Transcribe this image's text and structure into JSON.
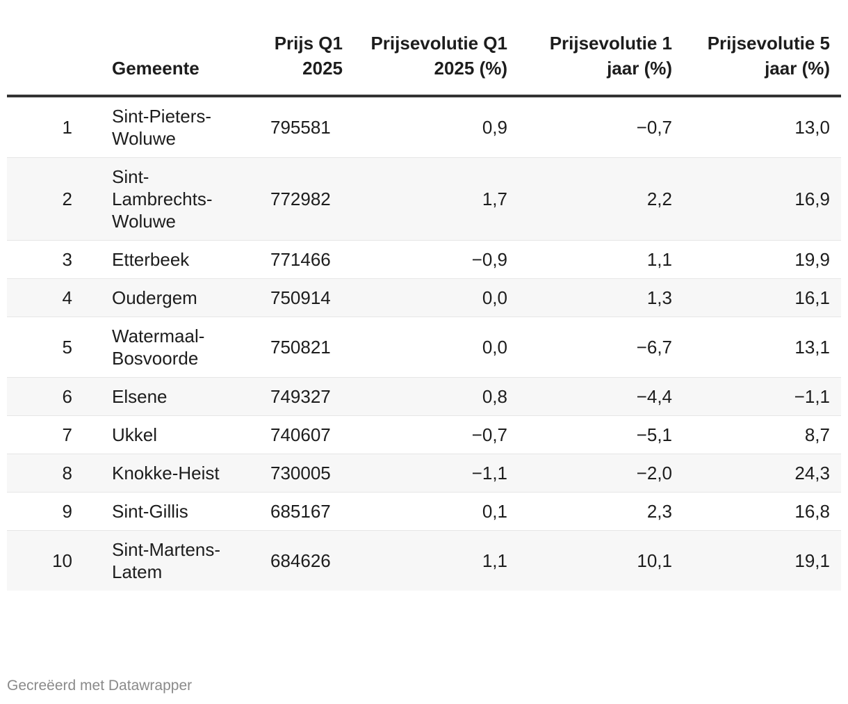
{
  "chart_data": {
    "type": "table",
    "columns": [
      "",
      "Gemeente",
      "Prijs Q1 2025",
      "Prijsevolutie Q1 2025 (%)",
      "Prijsevolutie 1 jaar (%)",
      "Prijsevolutie 5 jaar (%)"
    ],
    "header": {
      "rank": "",
      "gemeente": "Gemeente",
      "prijs": "Prijs Q1 2025",
      "evolutie_q1": "Prijsevolutie Q1 2025 (%)",
      "evolutie_1j": "Prijsevolutie 1 jaar (%)",
      "evolutie_5j": "Prijsevolutie 5 jaar (%)"
    },
    "rows": [
      {
        "rank": "1",
        "gemeente": "Sint-Pieters-Woluwe",
        "prijs": "795581",
        "q1": "0,9",
        "j1": "−0,7",
        "j5": "13,0"
      },
      {
        "rank": "2",
        "gemeente": "Sint-Lambrechts-Woluwe",
        "prijs": "772982",
        "q1": "1,7",
        "j1": "2,2",
        "j5": "16,9"
      },
      {
        "rank": "3",
        "gemeente": "Etterbeek",
        "prijs": "771466",
        "q1": "−0,9",
        "j1": "1,1",
        "j5": "19,9"
      },
      {
        "rank": "4",
        "gemeente": "Oudergem",
        "prijs": "750914",
        "q1": "0,0",
        "j1": "1,3",
        "j5": "16,1"
      },
      {
        "rank": "5",
        "gemeente": "Watermaal-Bosvoorde",
        "prijs": "750821",
        "q1": "0,0",
        "j1": "−6,7",
        "j5": "13,1"
      },
      {
        "rank": "6",
        "gemeente": "Elsene",
        "prijs": "749327",
        "q1": "0,8",
        "j1": "−4,4",
        "j5": "−1,1"
      },
      {
        "rank": "7",
        "gemeente": "Ukkel",
        "prijs": "740607",
        "q1": "−0,7",
        "j1": "−5,1",
        "j5": "8,7"
      },
      {
        "rank": "8",
        "gemeente": "Knokke-Heist",
        "prijs": "730005",
        "q1": "−1,1",
        "j1": "−2,0",
        "j5": "24,3"
      },
      {
        "rank": "9",
        "gemeente": "Sint-Gillis",
        "prijs": "685167",
        "q1": "0,1",
        "j1": "2,3",
        "j5": "16,8"
      },
      {
        "rank": "10",
        "gemeente": "Sint-Martens-Latem",
        "prijs": "684626",
        "q1": "1,1",
        "j1": "10,1",
        "j5": "19,1"
      }
    ]
  },
  "footer": {
    "credit": "Gecreëerd met Datawrapper"
  }
}
